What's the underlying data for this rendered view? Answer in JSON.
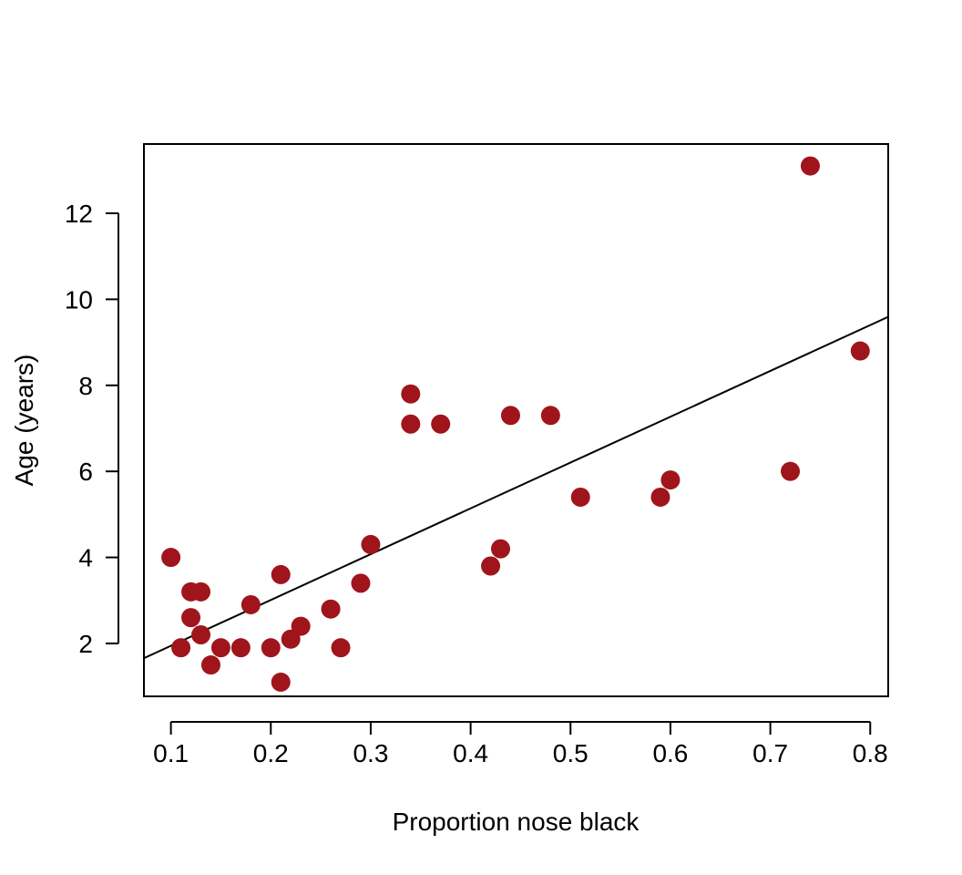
{
  "chart_data": {
    "type": "scatter",
    "title": "",
    "xlabel": "Proportion nose black",
    "ylabel": "Age (years)",
    "xlim": [
      0.073,
      0.818
    ],
    "ylim": [
      0.77,
      13.61
    ],
    "xticks": [
      0.1,
      0.2,
      0.3,
      0.4,
      0.5,
      0.6,
      0.7,
      0.8
    ],
    "xtick_labels": [
      "0.1",
      "0.2",
      "0.3",
      "0.4",
      "0.5",
      "0.6",
      "0.7",
      "0.8"
    ],
    "yticks": [
      2,
      4,
      6,
      8,
      10,
      12
    ],
    "ytick_labels": [
      "2",
      "4",
      "6",
      "8",
      "10",
      "12"
    ],
    "grid": false,
    "legend": "none",
    "point_color": "#A0141C",
    "series": [
      {
        "x": [
          0.1,
          0.11,
          0.12,
          0.12,
          0.13,
          0.13,
          0.14,
          0.15,
          0.17,
          0.18,
          0.2,
          0.21,
          0.21,
          0.22,
          0.23,
          0.26,
          0.27,
          0.29,
          0.3,
          0.34,
          0.34,
          0.37,
          0.42,
          0.43,
          0.44,
          0.48,
          0.51,
          0.59,
          0.6,
          0.72,
          0.74,
          0.79
        ],
        "y": [
          4.0,
          1.9,
          3.2,
          2.6,
          3.2,
          2.2,
          1.5,
          1.9,
          1.9,
          2.9,
          1.9,
          3.6,
          1.1,
          2.1,
          2.4,
          2.8,
          1.9,
          3.4,
          4.3,
          7.8,
          7.1,
          7.1,
          3.8,
          4.2,
          7.3,
          7.3,
          5.4,
          5.4,
          5.8,
          6.0,
          13.1,
          8.8
        ]
      }
    ],
    "regression_line": {
      "intercept": 0.88,
      "slope": 10.65
    }
  }
}
